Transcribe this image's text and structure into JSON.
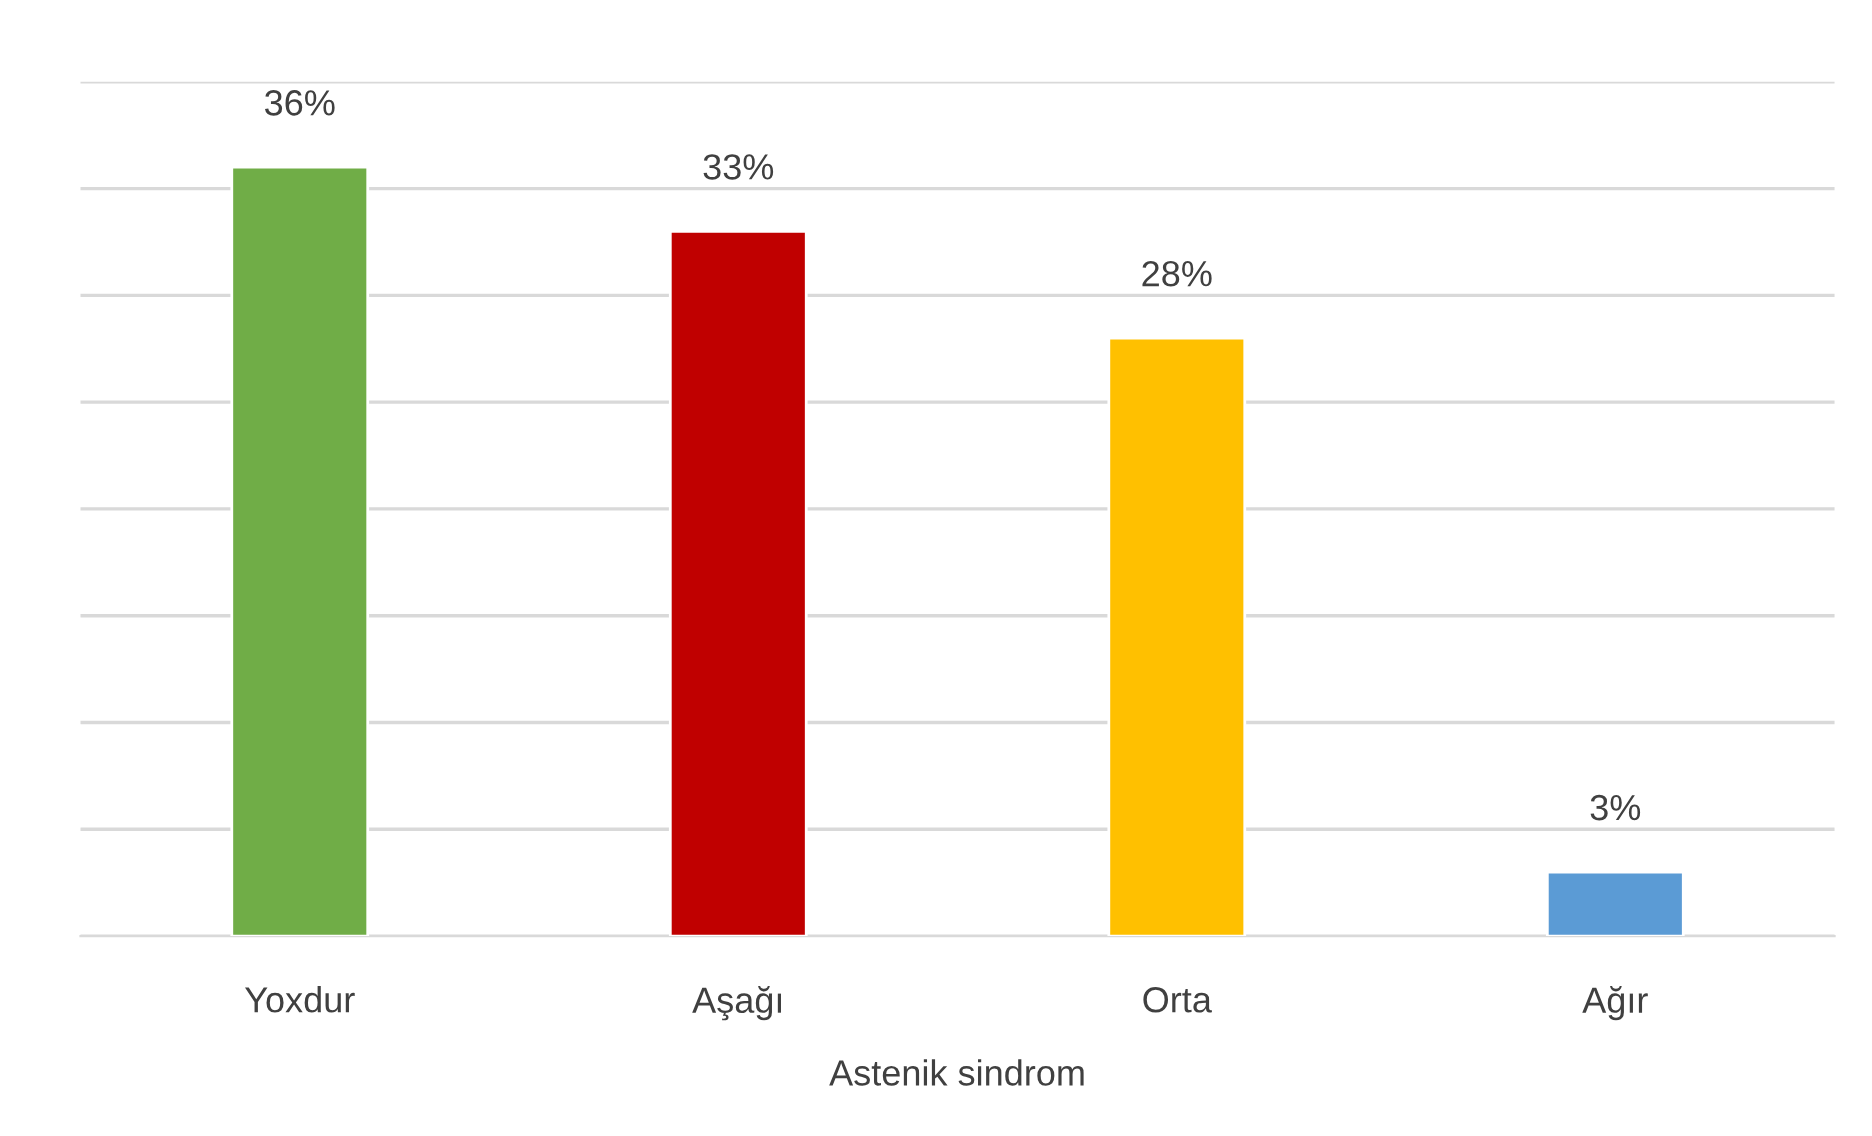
{
  "chart_data": {
    "type": "bar",
    "xlabel": "Astenik sindrom",
    "categories": [
      "Yoxdur",
      "Aşağı",
      "Orta",
      "Ağır"
    ],
    "values": [
      36,
      33,
      28,
      3
    ],
    "colors": [
      "#70ad47",
      "#c00000",
      "#ffc000",
      "#5b9bd5"
    ],
    "value_labels": [
      "36%",
      "33%",
      "28%",
      "3%"
    ],
    "ylim": [
      0,
      40
    ],
    "yticks": [
      {
        "value": 0,
        "label": null
      },
      {
        "value": 5,
        "label": null
      },
      {
        "value": 10,
        "label": null
      },
      {
        "value": 15,
        "label": null
      },
      {
        "value": 20,
        "label": null
      },
      {
        "value": 25,
        "label": null
      },
      {
        "value": 30,
        "label": null
      },
      {
        "value": 35,
        "label": null
      },
      {
        "value": 40,
        "label": null
      }
    ],
    "tick_labels": "x",
    "grid": "y",
    "legend": false
  }
}
